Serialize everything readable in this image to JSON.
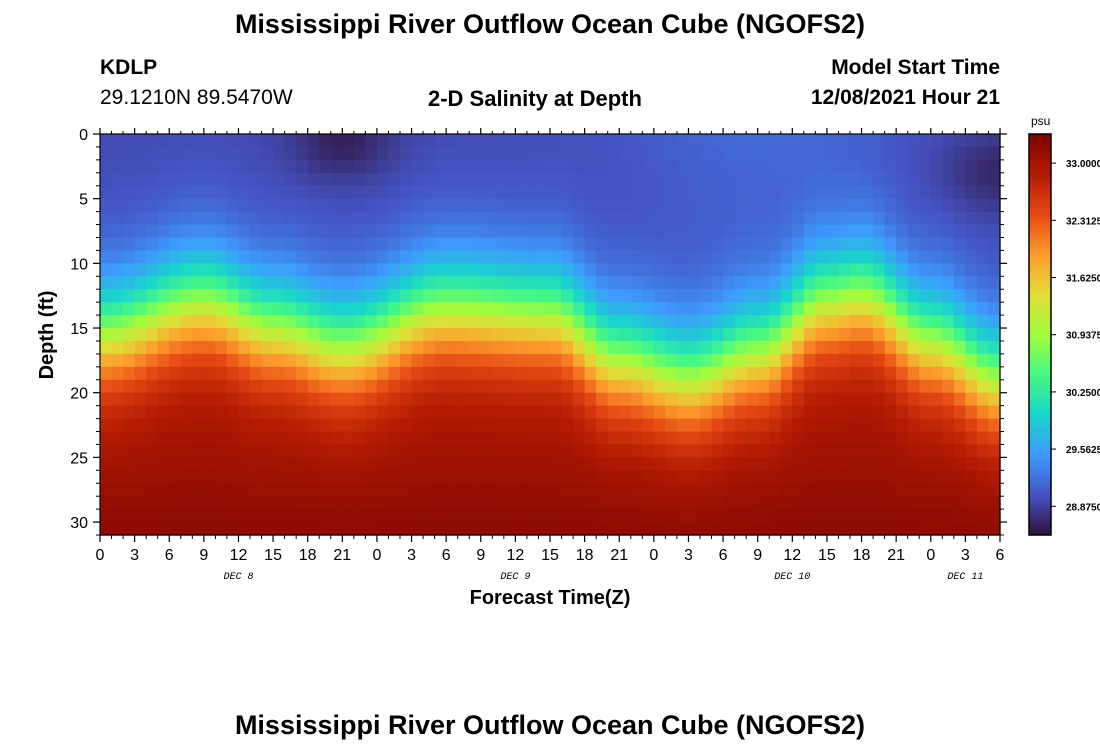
{
  "header": {
    "title": "Mississippi River Outflow Ocean Cube (NGOFS2)",
    "station": "KDLP",
    "coords": "29.1210N  89.5470W",
    "subtitle": "2-D Salinity at Depth",
    "model_label": "Model Start Time",
    "model_time": "12/08/2021 Hour 21"
  },
  "footer": {
    "title": "Mississippi River Outflow Ocean Cube (NGOFS2)"
  },
  "chart_data": {
    "type": "heatmap",
    "title": "2-D Salinity at Depth",
    "xlabel": "Forecast Time(Z)",
    "ylabel": "Depth (ft)",
    "x_tick_labels": [
      "0",
      "3",
      "6",
      "9",
      "12",
      "15",
      "18",
      "21",
      "0",
      "3",
      "6",
      "9",
      "12",
      "15",
      "18",
      "21",
      "0",
      "3",
      "6",
      "9",
      "12",
      "15",
      "18",
      "21",
      "0",
      "3",
      "6"
    ],
    "x_tick_hours": [
      0,
      3,
      6,
      9,
      12,
      15,
      18,
      21,
      24,
      27,
      30,
      33,
      36,
      39,
      42,
      45,
      48,
      51,
      54,
      57,
      60,
      63,
      66,
      69,
      72,
      75,
      78
    ],
    "x_range_hours": [
      0,
      78
    ],
    "date_labels": [
      {
        "label": "DEC 8",
        "hour": 12
      },
      {
        "label": "DEC 9",
        "hour": 36
      },
      {
        "label": "DEC 10",
        "hour": 60
      },
      {
        "label": "DEC 11",
        "hour": 75
      }
    ],
    "y_tick_labels": [
      "0",
      "5",
      "10",
      "15",
      "20",
      "25",
      "30"
    ],
    "y_ticks": [
      0,
      5,
      10,
      15,
      20,
      25,
      30
    ],
    "y_range": [
      0,
      31
    ],
    "colorbar": {
      "unit": "psu",
      "range": [
        28.53,
        33.35
      ],
      "ticks": [
        33.0,
        32.3125,
        31.625,
        30.9375,
        30.25,
        29.5625,
        28.875
      ],
      "tick_labels": [
        "33.0000",
        "32.3125",
        "31.6250",
        "30.9375",
        "30.2500",
        "29.5625",
        "28.8750"
      ]
    },
    "halocline_depth_ft": [
      {
        "hour": 0,
        "depth": 15.5
      },
      {
        "hour": 9,
        "depth": 13.0
      },
      {
        "hour": 15,
        "depth": 15.0
      },
      {
        "hour": 21,
        "depth": 16.5
      },
      {
        "hour": 30,
        "depth": 13.5
      },
      {
        "hour": 39,
        "depth": 14.0
      },
      {
        "hour": 45,
        "depth": 17.5
      },
      {
        "hour": 51,
        "depth": 19.0
      },
      {
        "hour": 57,
        "depth": 17.0
      },
      {
        "hour": 63,
        "depth": 13.0
      },
      {
        "hour": 66,
        "depth": 12.5
      },
      {
        "hour": 72,
        "depth": 16.0
      },
      {
        "hour": 78,
        "depth": 19.0
      }
    ]
  }
}
